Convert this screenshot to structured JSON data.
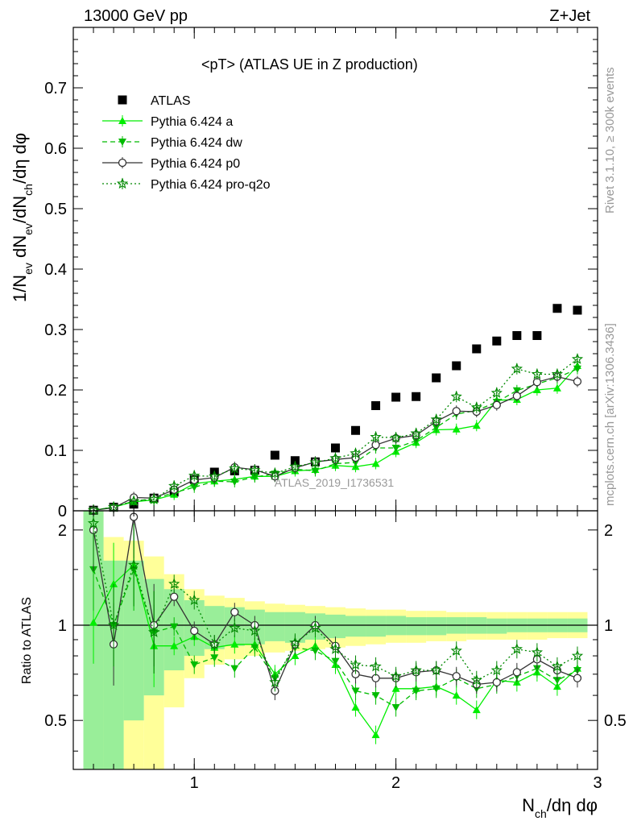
{
  "header": {
    "left": "13000 GeV pp",
    "right": "Z+Jet"
  },
  "side_labels": {
    "top": "Rivet 3.1.10, ≥ 300k events",
    "bottom": "mcplots.cern.ch [arXiv:1306.3436]"
  },
  "colors": {
    "atlas": "#000000",
    "pythia_a": "#00ee00",
    "pythia_dw": "#00bb00",
    "pythia_p0": "#333333",
    "pythia_proq2o": "#008800",
    "band_inner": "#99ee99",
    "band_outer": "#ffff99"
  },
  "chart_data": [
    {
      "type": "scatter",
      "panel": "main",
      "title": "<pT> (ATLAS UE in Z production)",
      "watermark": "ATLAS_2019_I1736531",
      "ylabel": "1/N_ev dN_ev/dN_ch/dη dφ",
      "xlim": [
        0.4,
        3.0
      ],
      "ylim": [
        0,
        0.8
      ],
      "yticks": [
        "0",
        "0.1",
        "0.2",
        "0.3",
        "0.4",
        "0.5",
        "0.6",
        "0.7"
      ],
      "legend_position": "top-left",
      "x": [
        0.5,
        0.6,
        0.7,
        0.8,
        0.9,
        1.0,
        1.1,
        1.2,
        1.3,
        1.4,
        1.5,
        1.6,
        1.7,
        1.8,
        1.9,
        2.0,
        2.1,
        2.2,
        2.3,
        2.4,
        2.5,
        2.6,
        2.7,
        2.8,
        2.9
      ],
      "series": [
        {
          "name": "ATLAS",
          "values": [
            0.001,
            0.006,
            0.011,
            0.021,
            0.031,
            0.052,
            0.064,
            0.066,
            0.067,
            0.092,
            0.083,
            0.081,
            0.104,
            0.133,
            0.174,
            0.188,
            0.189,
            0.22,
            0.24,
            0.268,
            0.281,
            0.29,
            0.29,
            0.335,
            0.332
          ]
        },
        {
          "name": "Pythia 6.424 a",
          "values": [
            0.001,
            0.006,
            0.015,
            0.018,
            0.027,
            0.045,
            0.049,
            0.052,
            0.057,
            0.057,
            0.066,
            0.068,
            0.075,
            0.073,
            0.078,
            0.098,
            0.113,
            0.134,
            0.135,
            0.141,
            0.183,
            0.184,
            0.2,
            0.203,
            0.24
          ]
        },
        {
          "name": "Pythia 6.424 dw",
          "values": [
            0.001,
            0.006,
            0.016,
            0.02,
            0.03,
            0.039,
            0.049,
            0.048,
            0.056,
            0.061,
            0.069,
            0.066,
            0.078,
            0.08,
            0.104,
            0.104,
            0.116,
            0.138,
            0.16,
            0.166,
            0.18,
            0.199,
            0.21,
            0.22,
            0.235
          ]
        },
        {
          "name": "Pythia 6.424 p0",
          "values": [
            0.001,
            0.005,
            0.022,
            0.021,
            0.035,
            0.051,
            0.055,
            0.072,
            0.068,
            0.057,
            0.071,
            0.081,
            0.085,
            0.088,
            0.109,
            0.12,
            0.125,
            0.148,
            0.165,
            0.164,
            0.175,
            0.19,
            0.213,
            0.222,
            0.214
          ]
        },
        {
          "name": "Pythia 6.424 pro-q2o",
          "values": [
            0.001,
            0.006,
            0.016,
            0.019,
            0.041,
            0.058,
            0.057,
            0.07,
            0.067,
            0.062,
            0.073,
            0.08,
            0.087,
            0.095,
            0.122,
            0.121,
            0.128,
            0.151,
            0.189,
            0.171,
            0.195,
            0.235,
            0.226,
            0.226,
            0.251
          ]
        }
      ]
    },
    {
      "type": "scatter",
      "panel": "ratio",
      "ylabel": "Ratio to ATLAS",
      "xlabel": "N_ch/dη dφ",
      "xlim": [
        0.4,
        3.0
      ],
      "ylim": [
        0.35,
        2.3
      ],
      "log_y": true,
      "reference_line": 1,
      "xticks": [
        "1",
        "2",
        "3"
      ],
      "yticks": [
        "0.5",
        "1",
        "2"
      ],
      "x": [
        0.5,
        0.6,
        0.7,
        0.8,
        0.9,
        1.0,
        1.1,
        1.2,
        1.3,
        1.4,
        1.5,
        1.6,
        1.7,
        1.8,
        1.9,
        2.0,
        2.1,
        2.2,
        2.3,
        2.4,
        2.5,
        2.6,
        2.7,
        2.8,
        2.9
      ],
      "band_inner": {
        "low": [
          0.3,
          0.3,
          0.5,
          0.6,
          0.72,
          0.8,
          0.84,
          0.86,
          0.87,
          0.89,
          0.88,
          0.9,
          0.91,
          0.92,
          0.92,
          0.93,
          0.93,
          0.93,
          0.94,
          0.94,
          0.94,
          0.95,
          0.95,
          0.95,
          0.95
        ],
        "high": [
          2.3,
          1.6,
          1.6,
          1.4,
          1.3,
          1.2,
          1.15,
          1.14,
          1.12,
          1.1,
          1.1,
          1.09,
          1.08,
          1.07,
          1.07,
          1.07,
          1.06,
          1.06,
          1.06,
          1.06,
          1.05,
          1.05,
          1.05,
          1.05,
          1.05
        ]
      },
      "band_outer": {
        "low": [
          0.3,
          0.3,
          0.3,
          0.35,
          0.55,
          0.68,
          0.75,
          0.78,
          0.8,
          0.82,
          0.83,
          0.84,
          0.85,
          0.86,
          0.87,
          0.88,
          0.88,
          0.89,
          0.89,
          0.9,
          0.9,
          0.9,
          0.9,
          0.91,
          0.91
        ],
        "high": [
          2.3,
          1.9,
          1.85,
          1.65,
          1.45,
          1.3,
          1.24,
          1.22,
          1.19,
          1.17,
          1.16,
          1.15,
          1.14,
          1.13,
          1.12,
          1.12,
          1.11,
          1.11,
          1.1,
          1.1,
          1.1,
          1.1,
          1.1,
          1.1,
          1.1
        ]
      },
      "series": [
        {
          "name": "Pythia 6.424 a",
          "values": [
            1.02,
            1.35,
            1.55,
            0.86,
            0.86,
            0.92,
            0.85,
            0.87,
            0.87,
            0.7,
            0.8,
            0.86,
            0.75,
            0.55,
            0.45,
            0.63,
            0.63,
            0.64,
            0.6,
            0.54,
            0.67,
            0.66,
            0.71,
            0.64,
            0.73
          ]
        },
        {
          "name": "Pythia 6.424 dw",
          "values": [
            1.5,
            1.0,
            1.5,
            0.95,
            0.99,
            0.75,
            0.79,
            0.73,
            0.85,
            0.68,
            0.85,
            0.83,
            0.77,
            0.62,
            0.6,
            0.55,
            0.62,
            0.63,
            0.68,
            0.63,
            0.65,
            0.69,
            0.73,
            0.67,
            0.72
          ]
        },
        {
          "name": "Pythia 6.424 p0",
          "values": [
            2.0,
            0.87,
            2.2,
            1.0,
            1.23,
            0.96,
            0.87,
            1.1,
            1.0,
            0.62,
            0.87,
            1.0,
            0.86,
            0.7,
            0.68,
            0.68,
            0.71,
            0.72,
            0.69,
            0.65,
            0.66,
            0.71,
            0.78,
            0.72,
            0.68
          ]
        },
        {
          "name": "Pythia 6.424 pro-q2o",
          "values": [
            2.1,
            1.0,
            1.55,
            0.95,
            1.35,
            1.2,
            0.87,
            0.98,
            0.96,
            0.66,
            0.88,
            0.98,
            0.84,
            0.75,
            0.74,
            0.69,
            0.72,
            0.72,
            0.83,
            0.67,
            0.72,
            0.84,
            0.82,
            0.74,
            0.8
          ]
        }
      ]
    }
  ]
}
